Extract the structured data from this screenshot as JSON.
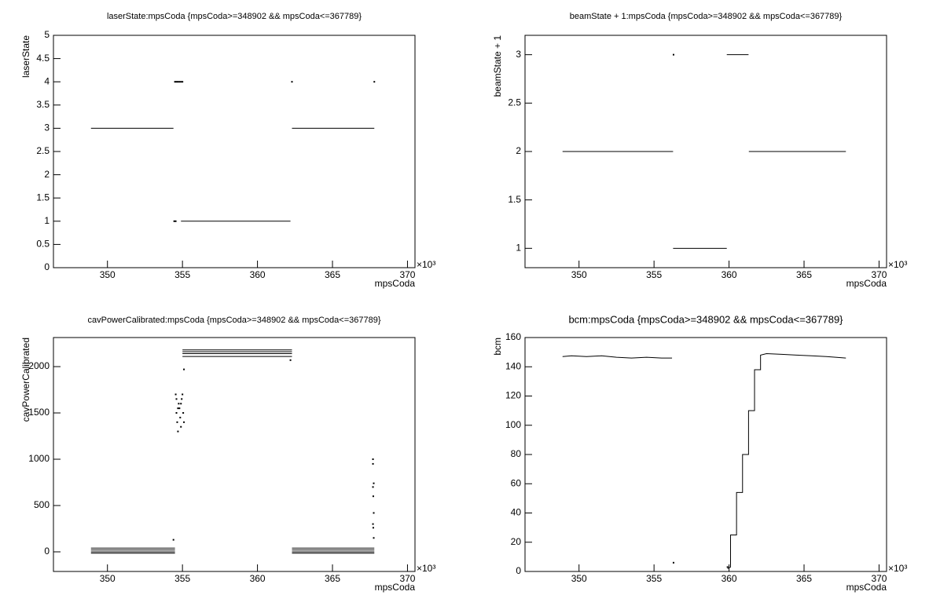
{
  "chart_data": [
    {
      "type": "scatter",
      "title": "laserState:mpsCoda {mpsCoda>=348902 && mpsCoda<=367789}",
      "xlabel": "mpsCoda",
      "ylabel": "laserState",
      "x_exponent": "×10³",
      "xlim": [
        346.4,
        370.5
      ],
      "xticks": [
        350,
        355,
        360,
        365,
        370
      ],
      "ylim": [
        0,
        5
      ],
      "yticks": [
        0,
        0.5,
        1,
        1.5,
        2,
        2.5,
        3,
        3.5,
        4,
        4.5,
        5
      ],
      "series": [
        {
          "style": "line",
          "color": "#000000",
          "x": [
            348.902,
            354.4,
            null,
            354.9,
            362.2,
            null,
            362.3,
            367.789
          ],
          "y": [
            3,
            3,
            null,
            1,
            1,
            null,
            3,
            3
          ]
        },
        {
          "style": "markers",
          "color": "#000000",
          "x": [
            354.5,
            354.6,
            354.7,
            354.8,
            354.9,
            355.0,
            354.45,
            354.55,
            362.3,
            367.789
          ],
          "y": [
            4,
            4,
            4,
            4,
            4,
            4,
            1,
            1,
            4,
            4
          ]
        }
      ]
    },
    {
      "type": "scatter",
      "title": "beamState + 1:mpsCoda {mpsCoda>=348902 && mpsCoda<=367789}",
      "xlabel": "mpsCoda",
      "ylabel": "beamState + 1",
      "x_exponent": "×10³",
      "xlim": [
        346.4,
        370.5
      ],
      "xticks": [
        350,
        355,
        360,
        365,
        370
      ],
      "ylim": [
        0.8,
        3.2
      ],
      "yticks": [
        1,
        1.5,
        2,
        2.5,
        3
      ],
      "series": [
        {
          "style": "line",
          "color": "#000000",
          "x": [
            348.902,
            356.27,
            null,
            356.27,
            359.85,
            null,
            359.85,
            361.3,
            null,
            361.32,
            367.789
          ],
          "y": [
            2,
            2,
            null,
            1,
            1,
            null,
            3,
            3,
            null,
            2,
            2
          ]
        },
        {
          "style": "markers",
          "color": "#000000",
          "x": [
            356.3
          ],
          "y": [
            3
          ]
        }
      ]
    },
    {
      "type": "scatter",
      "title": "cavPowerCalibrated:mpsCoda {mpsCoda>=348902 && mpsCoda<=367789}",
      "xlabel": "mpsCoda",
      "ylabel": "cavPowerCalibrated",
      "x_exponent": "×10³",
      "xlim": [
        346.4,
        370.5
      ],
      "xticks": [
        350,
        355,
        360,
        365,
        370
      ],
      "ylim": [
        -212,
        2314
      ],
      "yticks": [
        0,
        500,
        1000,
        1500,
        2000
      ],
      "series": [
        {
          "style": "line",
          "color": "#000000",
          "x": [
            348.902,
            354.5,
            null,
            348.902,
            354.5,
            null,
            348.902,
            354.5,
            null,
            348.902,
            354.5,
            null,
            362.3,
            367.789,
            null,
            362.3,
            367.789,
            null,
            362.3,
            367.789,
            null,
            362.3,
            367.789,
            null,
            355.0,
            362.3,
            null,
            355.0,
            362.3,
            null,
            355.0,
            362.3,
            null,
            355.0,
            362.3
          ],
          "y": [
            40,
            40,
            null,
            20,
            20,
            null,
            0,
            0,
            null,
            -15,
            -15,
            null,
            40,
            40,
            null,
            20,
            20,
            null,
            0,
            0,
            null,
            -15,
            -15,
            null,
            2180,
            2180,
            null,
            2160,
            2160,
            null,
            2140,
            2140,
            null,
            2110,
            2110
          ]
        },
        {
          "style": "markers",
          "color": "#000000",
          "x": [
            354.55,
            354.6,
            354.6,
            354.65,
            354.7,
            354.75,
            354.8,
            354.85,
            354.9,
            354.95,
            355.0,
            355.05,
            355.1,
            354.7,
            354.9,
            355.1,
            354.4,
            367.7,
            367.7,
            367.75,
            367.7,
            367.72,
            367.75,
            367.7,
            367.72,
            367.75,
            362.2
          ],
          "y": [
            1700,
            1650,
            1500,
            1400,
            1300,
            1600,
            1550,
            1450,
            1350,
            1650,
            1700,
            1500,
            1400,
            1550,
            1600,
            1970,
            130,
            1000,
            950,
            740,
            700,
            600,
            420,
            300,
            260,
            150,
            2070
          ]
        }
      ]
    },
    {
      "type": "scatter",
      "title": "bcm:mpsCoda {mpsCoda>=348902 && mpsCoda<=367789}",
      "xlabel": "mpsCoda",
      "ylabel": "bcm",
      "x_exponent": "×10³",
      "xlim": [
        346.4,
        370.5
      ],
      "xticks": [
        350,
        355,
        360,
        365,
        370
      ],
      "ylim": [
        0,
        160
      ],
      "yticks": [
        0,
        20,
        40,
        60,
        80,
        100,
        120,
        140,
        160
      ],
      "series": [
        {
          "style": "line",
          "color": "#000000",
          "x": [
            348.902,
            349.5,
            350.5,
            351.5,
            352.5,
            353.5,
            354.5,
            355.5,
            356.2,
            null,
            359.9,
            360.1,
            360.1,
            360.5,
            360.5,
            360.9,
            360.9,
            361.3,
            361.3,
            361.7,
            361.7,
            362.1,
            362.1,
            362.5,
            363.5,
            364.5,
            365.5,
            366.5,
            367.789
          ],
          "y": [
            147,
            147.5,
            147,
            147.5,
            146.5,
            146,
            146.5,
            146,
            146,
            null,
            2,
            3,
            25,
            25,
            54,
            54,
            80,
            80,
            110,
            110,
            138,
            138,
            148,
            149,
            148.5,
            148,
            147.5,
            147,
            146
          ]
        },
        {
          "style": "markers",
          "color": "#000000",
          "x": [
            356.3,
            359.9
          ],
          "y": [
            6,
            3
          ]
        }
      ]
    }
  ]
}
